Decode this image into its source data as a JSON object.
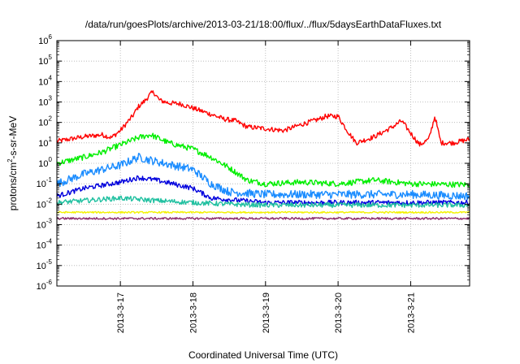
{
  "chart_data": {
    "type": "line",
    "title": "/data/run/goesPlots/archive/2013-03-21/18:00/flux/../flux/5daysEarthDataFluxes.txt",
    "xlabel": "Coordinated Universal Time (UTC)",
    "ylabel": {
      "pre": "protons/cm",
      "sup": "2",
      "post": "-s-sr-MeV"
    },
    "y_scale": "log",
    "ylim": [
      1e-06,
      1000000.0
    ],
    "xlim": [
      "2013-03-16 03:00",
      "2013-03-21 19:30"
    ],
    "x_ticks": [
      "2013-3-17",
      "2013-3-18",
      "2013-3-19",
      "2013-3-20",
      "2013-3-21"
    ],
    "y_tick_exponents": [
      -6,
      -5,
      -4,
      -3,
      -2,
      -1,
      0,
      1,
      2,
      3,
      4,
      5,
      6
    ],
    "y_tick_base": "10",
    "grid": true,
    "legend": "none",
    "series": [
      {
        "color": "#ff0000",
        "noise": 0.12,
        "points": [
          [
            "2013-03-16 03:00",
            12
          ],
          [
            "2013-03-16 12:00",
            20
          ],
          [
            "2013-03-16 18:00",
            25
          ],
          [
            "2013-03-16 21:00",
            18
          ],
          [
            "2013-03-17 00:00",
            40
          ],
          [
            "2013-03-17 04:00",
            200
          ],
          [
            "2013-03-17 06:00",
            600
          ],
          [
            "2013-03-17 08:00",
            1100
          ],
          [
            "2013-03-17 10:00",
            2500
          ],
          [
            "2013-03-17 11:00",
            3000
          ],
          [
            "2013-03-17 13:00",
            1200
          ],
          [
            "2013-03-17 16:00",
            900
          ],
          [
            "2013-03-17 20:00",
            800
          ],
          [
            "2013-03-18 00:00",
            500
          ],
          [
            "2013-03-18 06:00",
            250
          ],
          [
            "2013-03-18 10:00",
            150
          ],
          [
            "2013-03-18 14:00",
            120
          ],
          [
            "2013-03-18 18:00",
            60
          ],
          [
            "2013-03-19 00:00",
            50
          ],
          [
            "2013-03-19 06:00",
            40
          ],
          [
            "2013-03-19 12:00",
            80
          ],
          [
            "2013-03-19 18:00",
            150
          ],
          [
            "2013-03-19 20:00",
            200
          ],
          [
            "2013-03-20 00:00",
            200
          ],
          [
            "2013-03-20 03:00",
            40
          ],
          [
            "2013-03-20 06:00",
            10
          ],
          [
            "2013-03-20 12:00",
            20
          ],
          [
            "2013-03-20 18:00",
            60
          ],
          [
            "2013-03-20 21:00",
            120
          ],
          [
            "2013-03-21 00:00",
            30
          ],
          [
            "2013-03-21 03:00",
            8
          ],
          [
            "2013-03-21 06:00",
            15
          ],
          [
            "2013-03-21 08:00",
            200
          ],
          [
            "2013-03-21 10:00",
            10
          ],
          [
            "2013-03-21 14:00",
            10
          ],
          [
            "2013-03-21 19:30",
            15
          ]
        ]
      },
      {
        "color": "#00ee00",
        "noise": 0.14,
        "points": [
          [
            "2013-03-16 03:00",
            1.0
          ],
          [
            "2013-03-16 12:00",
            2.0
          ],
          [
            "2013-03-16 18:00",
            3.5
          ],
          [
            "2013-03-17 00:00",
            8
          ],
          [
            "2013-03-17 06:00",
            18
          ],
          [
            "2013-03-17 10:00",
            25
          ],
          [
            "2013-03-17 16:00",
            10
          ],
          [
            "2013-03-18 00:00",
            5
          ],
          [
            "2013-03-18 06:00",
            2
          ],
          [
            "2013-03-18 12:00",
            0.6
          ],
          [
            "2013-03-18 18:00",
            0.15
          ],
          [
            "2013-03-19 00:00",
            0.1
          ],
          [
            "2013-03-19 12:00",
            0.12
          ],
          [
            "2013-03-20 00:00",
            0.1
          ],
          [
            "2013-03-20 12:00",
            0.15
          ],
          [
            "2013-03-21 00:00",
            0.1
          ],
          [
            "2013-03-21 19:30",
            0.09
          ]
        ]
      },
      {
        "color": "#1a8cff",
        "noise": 0.2,
        "points": [
          [
            "2013-03-16 03:00",
            0.1
          ],
          [
            "2013-03-16 12:00",
            0.3
          ],
          [
            "2013-03-16 18:00",
            0.5
          ],
          [
            "2013-03-17 00:00",
            0.8
          ],
          [
            "2013-03-17 06:00",
            2.0
          ],
          [
            "2013-03-17 12:00",
            1.2
          ],
          [
            "2013-03-18 00:00",
            0.5
          ],
          [
            "2013-03-18 06:00",
            0.1
          ],
          [
            "2013-03-18 12:00",
            0.04
          ],
          [
            "2013-03-19 00:00",
            0.03
          ],
          [
            "2013-03-20 00:00",
            0.03
          ],
          [
            "2013-03-21 00:00",
            0.03
          ],
          [
            "2013-03-21 19:30",
            0.025
          ]
        ]
      },
      {
        "color": "#0000dd",
        "noise": 0.12,
        "points": [
          [
            "2013-03-16 03:00",
            0.025
          ],
          [
            "2013-03-16 12:00",
            0.06
          ],
          [
            "2013-03-17 00:00",
            0.12
          ],
          [
            "2013-03-17 06:00",
            0.2
          ],
          [
            "2013-03-17 12:00",
            0.15
          ],
          [
            "2013-03-18 00:00",
            0.06
          ],
          [
            "2013-03-18 06:00",
            0.02
          ],
          [
            "2013-03-19 00:00",
            0.012
          ],
          [
            "2013-03-20 00:00",
            0.012
          ],
          [
            "2013-03-21 00:00",
            0.012
          ],
          [
            "2013-03-21 19:30",
            0.012
          ]
        ]
      },
      {
        "color": "#20c0a0",
        "noise": 0.12,
        "points": [
          [
            "2013-03-16 03:00",
            0.012
          ],
          [
            "2013-03-16 12:00",
            0.015
          ],
          [
            "2013-03-17 00:00",
            0.02
          ],
          [
            "2013-03-17 12:00",
            0.015
          ],
          [
            "2013-03-18 00:00",
            0.012
          ],
          [
            "2013-03-18 12:00",
            0.01
          ],
          [
            "2013-03-19 00:00",
            0.009
          ],
          [
            "2013-03-20 00:00",
            0.009
          ],
          [
            "2013-03-21 00:00",
            0.009
          ],
          [
            "2013-03-21 19:30",
            0.009
          ]
        ]
      },
      {
        "color": "#f2f200",
        "noise": 0.04,
        "points": [
          [
            "2013-03-16 03:00",
            0.004
          ],
          [
            "2013-03-21 19:30",
            0.004
          ]
        ]
      },
      {
        "color": "#8b2a6b",
        "noise": 0.05,
        "points": [
          [
            "2013-03-16 03:00",
            0.002
          ],
          [
            "2013-03-21 19:30",
            0.002
          ]
        ]
      }
    ]
  }
}
